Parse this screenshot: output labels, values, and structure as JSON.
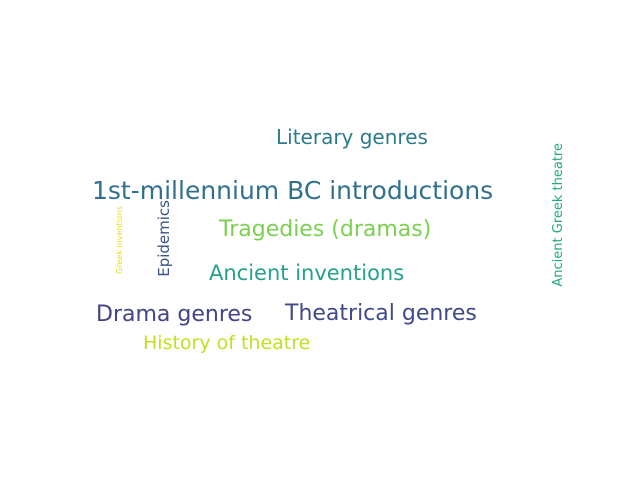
{
  "words": {
    "literary_genres": "Literary genres",
    "millennium": "1st-millennium BC introductions",
    "tragedies": "Tragedies (dramas)",
    "ancient_inventions": "Ancient inventions",
    "drama_genres": "Drama genres",
    "theatrical_genres": "Theatrical genres",
    "history_of_theatre": "History of theatre",
    "greek_inventions": "Greek inventions",
    "epidemics": "Epidemics",
    "ancient_greek_theatre": "Ancient Greek theatre"
  },
  "colors": {
    "background": "#ffffff",
    "teal": "#2b7b8c",
    "blue": "#31718e",
    "green": "#7ad151",
    "sea_green": "#25a18e",
    "indigo": "#414487",
    "lime": "#c2df23",
    "yellow": "#e2e418"
  }
}
